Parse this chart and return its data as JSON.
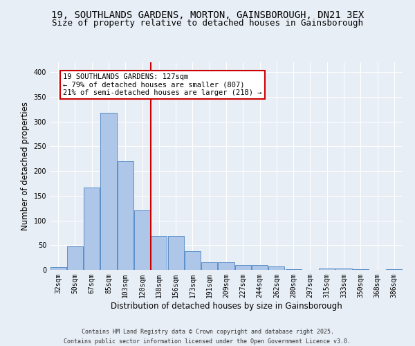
{
  "title_line1": "19, SOUTHLANDS GARDENS, MORTON, GAINSBOROUGH, DN21 3EX",
  "title_line2": "Size of property relative to detached houses in Gainsborough",
  "xlabel": "Distribution of detached houses by size in Gainsborough",
  "ylabel": "Number of detached properties",
  "categories": [
    "32sqm",
    "50sqm",
    "67sqm",
    "85sqm",
    "103sqm",
    "120sqm",
    "138sqm",
    "156sqm",
    "173sqm",
    "191sqm",
    "209sqm",
    "227sqm",
    "244sqm",
    "262sqm",
    "280sqm",
    "297sqm",
    "315sqm",
    "333sqm",
    "350sqm",
    "368sqm",
    "386sqm"
  ],
  "values": [
    5,
    48,
    167,
    318,
    220,
    120,
    68,
    68,
    38,
    16,
    16,
    10,
    10,
    7,
    2,
    0,
    3,
    3,
    1,
    0,
    2
  ],
  "bar_color": "#aec6e8",
  "bar_edge_color": "#5b8fc9",
  "vline_color": "#cc0000",
  "annotation_text": "19 SOUTHLANDS GARDENS: 127sqm\n← 79% of detached houses are smaller (807)\n21% of semi-detached houses are larger (218) →",
  "annotation_box_color": "#ffffff",
  "annotation_box_edge": "#cc0000",
  "background_color": "#e8eef5",
  "plot_background": "#e8eef5",
  "grid_color": "#ffffff",
  "footer_line1": "Contains HM Land Registry data © Crown copyright and database right 2025.",
  "footer_line2": "Contains public sector information licensed under the Open Government Licence v3.0.",
  "ylim": [
    0,
    420
  ],
  "yticks": [
    0,
    50,
    100,
    150,
    200,
    250,
    300,
    350,
    400
  ],
  "title_fontsize": 10,
  "subtitle_fontsize": 9,
  "tick_fontsize": 7,
  "label_fontsize": 8.5,
  "ann_fontsize": 7.5,
  "footer_fontsize": 6
}
